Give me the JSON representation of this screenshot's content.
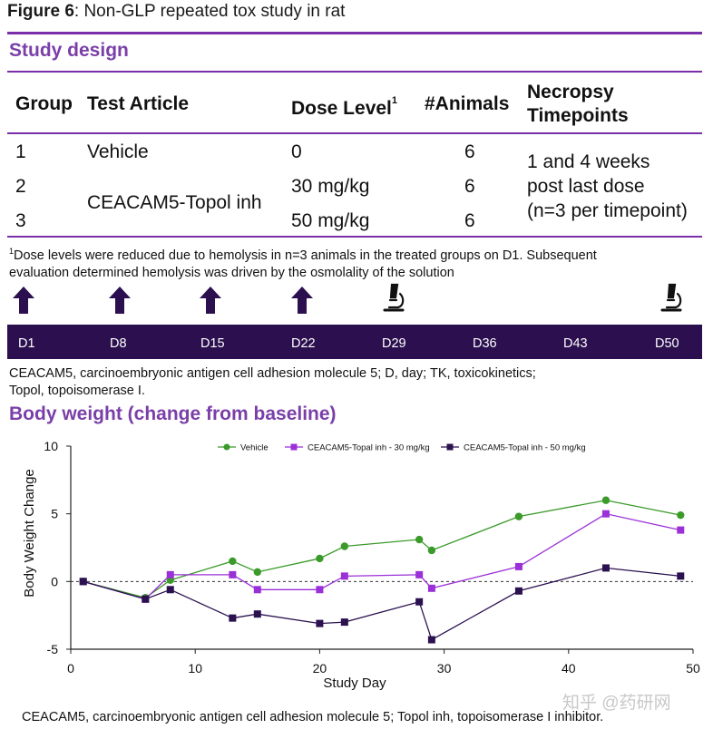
{
  "figure": {
    "label": "Figure 6",
    "title": ": Non-GLP repeated tox study in rat"
  },
  "study_design": {
    "heading": "Study design",
    "headers": {
      "group": "Group",
      "article": "Test Article",
      "dose": "Dose Level",
      "dose_sup": "1",
      "animals": "#Animals",
      "necropsy_1": "Necropsy",
      "necropsy_2": "Timepoints"
    },
    "rows": [
      {
        "group": "1",
        "article": "Vehicle",
        "dose": "0",
        "animals": "6"
      },
      {
        "group": "2",
        "article": "CEACAM5-Topol inh",
        "dose": "30 mg/kg",
        "animals": "6"
      },
      {
        "group": "3",
        "article": "",
        "dose": "50 mg/kg",
        "animals": "6"
      }
    ],
    "necropsy_lines": [
      "1 and 4 weeks",
      "post last dose",
      "(n=3 per timepoint)"
    ],
    "footnote_sup": "1",
    "footnote_line1": "Dose levels were reduced due to hemolysis in n=3 animals in the treated groups on D1. Subsequent",
    "footnote_line2": "evaluation determined hemolysis was driven by the osmolality of the solution"
  },
  "timeline": {
    "days": [
      "D1",
      "D8",
      "D15",
      "D22",
      "D29",
      "D36",
      "D43",
      "D50"
    ],
    "dose_markers": [
      "D1",
      "D8",
      "D15",
      "D22"
    ],
    "necropsy_markers": [
      "D29",
      "D50"
    ],
    "bar_color": "#2b0f4f",
    "arrow_color": "#2b0f4f"
  },
  "abbreviations": {
    "line1": "CEACAM5, carcinoembryonic antigen cell adhesion molecule 5; D, day; TK, toxicokinetics;",
    "line2": "Topol, topoisomerase I."
  },
  "body_weight": {
    "heading": "Body weight (change from baseline)"
  },
  "chart_data": {
    "type": "line",
    "title": "",
    "xlabel": "Study Day",
    "ylabel": "Body Weight Change",
    "xlim": [
      0,
      50
    ],
    "ylim": [
      -5,
      10
    ],
    "xticks": [
      0,
      10,
      20,
      30,
      40,
      50
    ],
    "yticks": [
      -5,
      0,
      5,
      10
    ],
    "reference_line_y": 0,
    "legend_position": "top",
    "series": [
      {
        "name": "Vehicle",
        "marker": "circle",
        "color": "#3a9a2a",
        "x": [
          1,
          6,
          8,
          13,
          15,
          20,
          22,
          28,
          29,
          36,
          43,
          49
        ],
        "y": [
          0.0,
          -1.2,
          0.1,
          1.5,
          0.7,
          1.7,
          2.6,
          3.1,
          2.3,
          4.8,
          6.0,
          4.9
        ]
      },
      {
        "name": "CEACAM5-Topal inh - 30 mg/kg",
        "marker": "square",
        "color": "#9b2fd8",
        "x": [
          1,
          6,
          8,
          13,
          15,
          20,
          22,
          28,
          29,
          36,
          43,
          49
        ],
        "y": [
          0.0,
          -1.3,
          0.5,
          0.5,
          -0.6,
          -0.6,
          0.4,
          0.5,
          -0.5,
          1.1,
          5.0,
          3.8
        ]
      },
      {
        "name": "CEACAM5-Topal inh - 50 mg/kg",
        "marker": "square",
        "color": "#2b1150",
        "x": [
          1,
          6,
          8,
          13,
          15,
          20,
          22,
          28,
          29,
          36,
          43,
          49
        ],
        "y": [
          0.0,
          -1.3,
          -0.6,
          -2.7,
          -2.4,
          -3.1,
          -3.0,
          -1.5,
          -4.3,
          -0.7,
          1.0,
          0.4
        ]
      }
    ]
  },
  "bottom_note": "CEACAM5, carcinoembryonic antigen cell adhesion molecule 5; Topol inh, topoisomerase I inhibitor.",
  "watermark": "知乎 @药研网"
}
